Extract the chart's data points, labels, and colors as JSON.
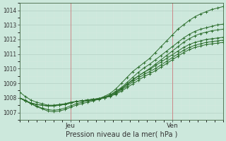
{
  "title": "",
  "xlabel": "Pression niveau de la mer( hPa )",
  "ylabel": "",
  "bg_color": "#cce8dc",
  "plot_bg_color": "#cce8dc",
  "grid_color_major": "#b8d4c8",
  "grid_color_minor": "#d4e8de",
  "line_color": "#2d6e2d",
  "vline_color": "#5a7a5a",
  "ylim": [
    1006.5,
    1014.5
  ],
  "xlim": [
    0,
    48
  ],
  "yticks": [
    1007,
    1008,
    1009,
    1010,
    1011,
    1012,
    1013,
    1014
  ],
  "xtick_positions": [
    12,
    36
  ],
  "xtick_labels": [
    "Jeu",
    "Ven"
  ],
  "vline_positions": [
    12,
    36
  ],
  "series": [
    [
      1008.4,
      1008.1,
      1007.85,
      1007.7,
      1007.6,
      1007.5,
      1007.5,
      1007.55,
      1007.6,
      1007.7,
      1007.75,
      1007.8,
      1007.85,
      1007.9,
      1007.95,
      1008.1,
      1008.3,
      1008.6,
      1009.0,
      1009.4,
      1009.8,
      1010.1,
      1010.4,
      1010.7,
      1011.1,
      1011.5,
      1011.9,
      1012.3,
      1012.7,
      1013.0,
      1013.3,
      1013.55,
      1013.75,
      1013.9,
      1014.05,
      1014.15,
      1014.25
    ],
    [
      1008.0,
      1007.85,
      1007.6,
      1007.4,
      1007.25,
      1007.1,
      1007.05,
      1007.1,
      1007.2,
      1007.35,
      1007.5,
      1007.6,
      1007.7,
      1007.8,
      1007.9,
      1008.0,
      1008.2,
      1008.45,
      1008.7,
      1009.05,
      1009.4,
      1009.75,
      1010.05,
      1010.3,
      1010.6,
      1010.9,
      1011.2,
      1011.5,
      1011.8,
      1012.1,
      1012.35,
      1012.55,
      1012.7,
      1012.8,
      1012.9,
      1013.0,
      1013.05
    ],
    [
      1008.0,
      1007.8,
      1007.6,
      1007.45,
      1007.3,
      1007.2,
      1007.15,
      1007.2,
      1007.3,
      1007.45,
      1007.6,
      1007.7,
      1007.8,
      1007.85,
      1007.9,
      1008.0,
      1008.15,
      1008.35,
      1008.6,
      1008.9,
      1009.2,
      1009.5,
      1009.75,
      1010.0,
      1010.3,
      1010.6,
      1010.9,
      1011.2,
      1011.5,
      1011.8,
      1012.05,
      1012.25,
      1012.4,
      1012.5,
      1012.6,
      1012.65,
      1012.7
    ],
    [
      1008.0,
      1007.8,
      1007.65,
      1007.55,
      1007.5,
      1007.45,
      1007.45,
      1007.5,
      1007.55,
      1007.65,
      1007.75,
      1007.8,
      1007.85,
      1007.9,
      1007.95,
      1008.05,
      1008.2,
      1008.4,
      1008.65,
      1008.95,
      1009.25,
      1009.5,
      1009.75,
      1009.95,
      1010.2,
      1010.45,
      1010.7,
      1010.95,
      1011.2,
      1011.45,
      1011.65,
      1011.8,
      1011.9,
      1012.0,
      1012.05,
      1012.1,
      1012.15
    ],
    [
      1008.0,
      1007.8,
      1007.65,
      1007.55,
      1007.5,
      1007.45,
      1007.45,
      1007.5,
      1007.55,
      1007.65,
      1007.75,
      1007.8,
      1007.85,
      1007.9,
      1007.95,
      1008.0,
      1008.15,
      1008.3,
      1008.55,
      1008.8,
      1009.1,
      1009.35,
      1009.6,
      1009.8,
      1010.0,
      1010.25,
      1010.5,
      1010.75,
      1011.0,
      1011.25,
      1011.45,
      1011.6,
      1011.7,
      1011.8,
      1011.85,
      1011.9,
      1011.95
    ],
    [
      1008.0,
      1007.8,
      1007.65,
      1007.55,
      1007.5,
      1007.45,
      1007.45,
      1007.5,
      1007.55,
      1007.65,
      1007.75,
      1007.8,
      1007.85,
      1007.9,
      1007.95,
      1008.0,
      1008.1,
      1008.25,
      1008.45,
      1008.7,
      1008.95,
      1009.2,
      1009.45,
      1009.65,
      1009.85,
      1010.1,
      1010.35,
      1010.6,
      1010.85,
      1011.1,
      1011.3,
      1011.45,
      1011.55,
      1011.65,
      1011.7,
      1011.75,
      1011.8
    ]
  ]
}
